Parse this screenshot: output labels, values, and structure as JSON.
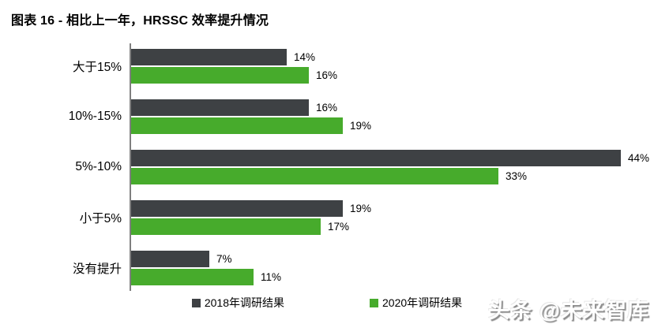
{
  "page": {
    "title": "图表 16 - 相比上一年，HRSSC 效率提升情况",
    "watermark": "头条 @未来智库"
  },
  "colors": {
    "series_2018": "#3e4144",
    "series_2020": "#47ab2c",
    "axis_line": "#7f7f7f",
    "text": "#000000",
    "background": "#ffffff"
  },
  "chart_data": {
    "type": "bar",
    "orientation": "horizontal",
    "title": "图表 16 - 相比上一年，HRSSC 效率提升情况",
    "categories": [
      "大于15%",
      "10%-15%",
      "5%-10%",
      "小于5%",
      "没有提升"
    ],
    "series": [
      {
        "name": "2018年调研结果",
        "color": "#3e4144",
        "values": [
          14,
          16,
          44,
          19,
          7
        ]
      },
      {
        "name": "2020年调研结果",
        "color": "#47ab2c",
        "values": [
          16,
          19,
          33,
          17,
          11
        ]
      }
    ],
    "value_suffix": "%",
    "value_labels": true,
    "xlim": [
      0,
      44
    ],
    "grid": false,
    "legend_position": "bottom"
  }
}
